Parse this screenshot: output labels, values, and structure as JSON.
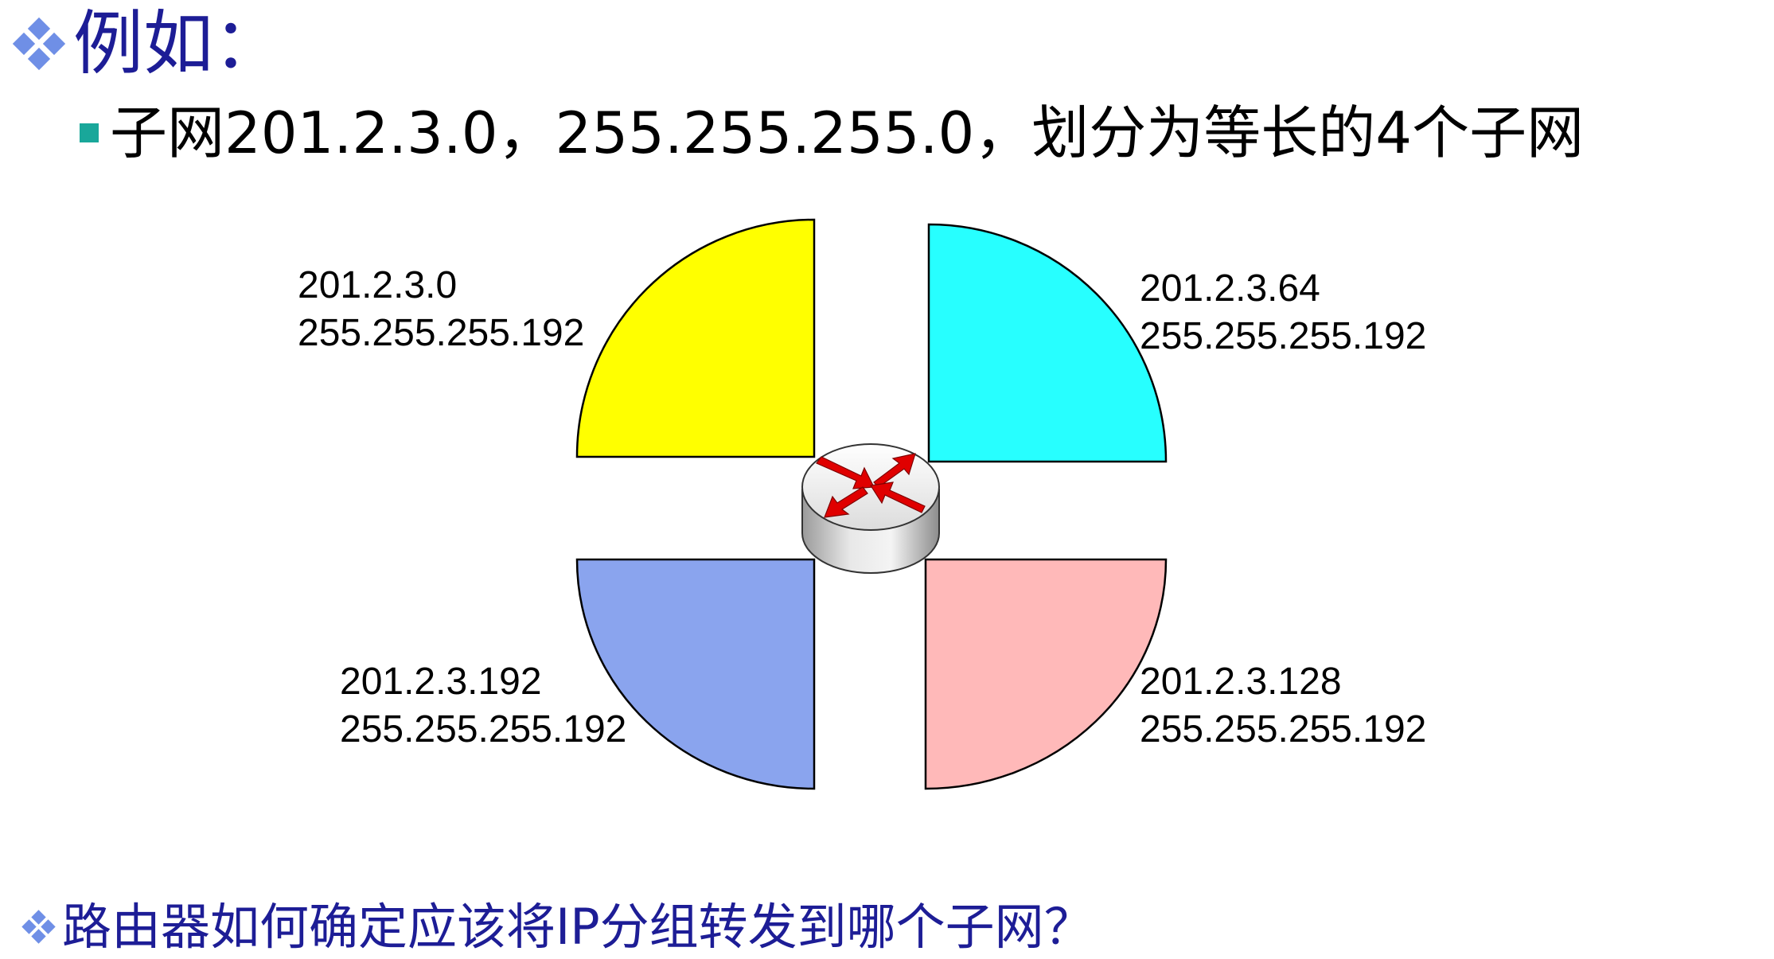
{
  "title": "例如：",
  "subtitle": "子网201.2.3.0，255.255.255.0，划分为等长的4个子网",
  "question": "路由器如何确定应该将IP分组转发到哪个子网？",
  "subnets": [
    {
      "id": "top-left",
      "network": "201.2.3.0",
      "mask": "255.255.255.192",
      "color": "#ffff00"
    },
    {
      "id": "top-right",
      "network": "201.2.3.64",
      "mask": "255.255.255.192",
      "color": "#27ffff"
    },
    {
      "id": "bottom-right",
      "network": "201.2.3.128",
      "mask": "255.255.255.192",
      "color": "#ffb9b9"
    },
    {
      "id": "bottom-left",
      "network": "201.2.3.192",
      "mask": "255.255.255.192",
      "color": "#8aa4ee"
    }
  ],
  "colors": {
    "title": "#1d1d96",
    "bullet_diamond": "#6f8fe6",
    "bullet_square": "#19a79a",
    "router_body": "#d6d6d6",
    "router_arrows": "#e00000"
  },
  "router": {
    "icon": "router-icon"
  }
}
